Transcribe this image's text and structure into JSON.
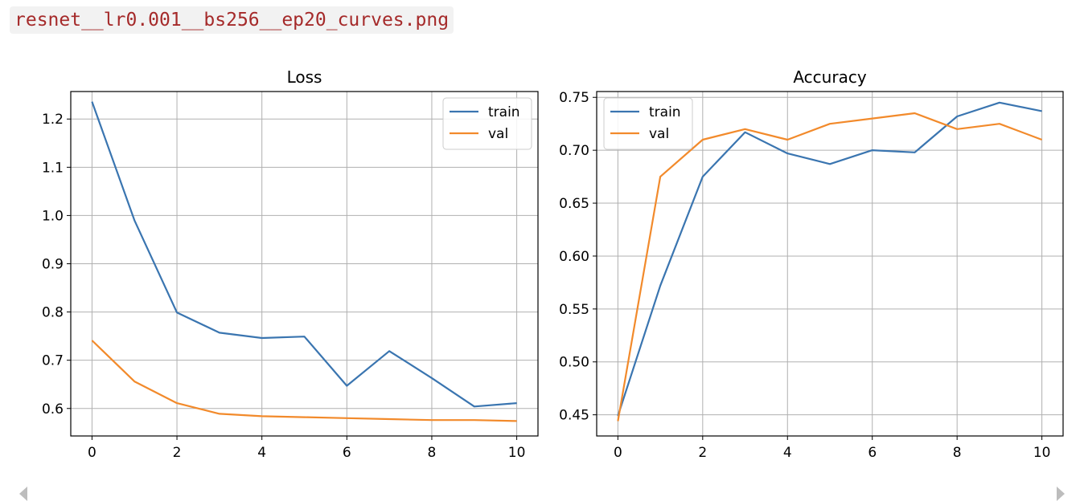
{
  "file": {
    "name": "resnet__lr0.001__bs256__ep20_curves.png"
  },
  "chart_data": [
    {
      "type": "line",
      "title": "Loss",
      "xlabel": "",
      "ylabel": "",
      "x": [
        0,
        1,
        2,
        3,
        4,
        5,
        6,
        7,
        8,
        9,
        10
      ],
      "xlim": [
        -0.5,
        10.5
      ],
      "ylim": [
        0.543,
        1.257
      ],
      "xticks": [
        0,
        2,
        4,
        6,
        8,
        10
      ],
      "yticks": [
        0.6,
        0.7,
        0.8,
        0.9,
        1.0,
        1.1,
        1.2
      ],
      "ytick_labels": [
        "0.6",
        "0.7",
        "0.8",
        "0.9",
        "1.0",
        "1.1",
        "1.2"
      ],
      "grid": true,
      "legend": "upper right",
      "series": [
        {
          "name": "train",
          "color": "#3a75b0",
          "values": [
            1.236,
            0.99,
            0.799,
            0.757,
            0.746,
            0.749,
            0.647,
            0.719,
            0.663,
            0.604,
            0.611
          ]
        },
        {
          "name": "val",
          "color": "#f28a2b",
          "values": [
            0.741,
            0.656,
            0.611,
            0.589,
            0.584,
            0.582,
            0.58,
            0.578,
            0.576,
            0.576,
            0.574
          ]
        }
      ]
    },
    {
      "type": "line",
      "title": "Accuracy",
      "xlabel": "",
      "ylabel": "",
      "x": [
        0,
        1,
        2,
        3,
        4,
        5,
        6,
        7,
        8,
        9,
        10
      ],
      "xlim": [
        -0.5,
        10.5
      ],
      "ylim": [
        0.43,
        0.7555
      ],
      "xticks": [
        0,
        2,
        4,
        6,
        8,
        10
      ],
      "yticks": [
        0.45,
        0.5,
        0.55,
        0.6,
        0.65,
        0.7,
        0.75
      ],
      "ytick_labels": [
        "0.45",
        "0.50",
        "0.55",
        "0.60",
        "0.65",
        "0.70",
        "0.75"
      ],
      "grid": true,
      "legend": "upper left",
      "series": [
        {
          "name": "train",
          "color": "#3a75b0",
          "values": [
            0.449,
            0.572,
            0.675,
            0.717,
            0.697,
            0.687,
            0.7,
            0.698,
            0.732,
            0.745,
            0.737
          ]
        },
        {
          "name": "val",
          "color": "#f28a2b",
          "values": [
            0.444,
            0.675,
            0.71,
            0.72,
            0.71,
            0.725,
            0.73,
            0.735,
            0.72,
            0.725,
            0.71
          ]
        }
      ]
    }
  ]
}
